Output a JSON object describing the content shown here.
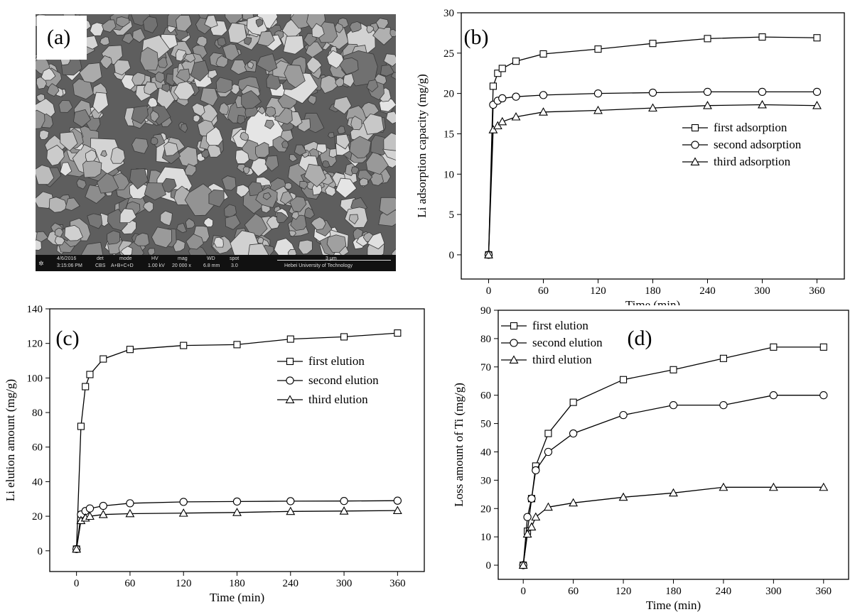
{
  "panel_a": {
    "label": "(a)",
    "sem_info": {
      "date": "4/6/2016",
      "time": "3:15:06 PM",
      "det_label": "det",
      "det_value": "CBS",
      "mode_label": "mode",
      "mode_value": "A+B+C+D",
      "hv_label": "HV",
      "hv_value": "1.00 kV",
      "mag_label": "mag",
      "mag_value": "20 000 x",
      "wd_label": "WD",
      "wd_value": "6.8 mm",
      "spot_label": "spot",
      "spot_value": "3.0",
      "scale_label": "3 μm",
      "institution": "Hebei University of Technology"
    }
  },
  "chart_data": [
    {
      "id": "b",
      "panel_label": "(b)",
      "type": "line",
      "xlabel": "Time (min)",
      "ylabel": "Li adsorption capacity (mg/g)",
      "xlim": [
        -30,
        390
      ],
      "ylim": [
        -3,
        30
      ],
      "xticks": [
        0,
        60,
        120,
        180,
        240,
        300,
        360
      ],
      "yticks": [
        0,
        5,
        10,
        15,
        20,
        25,
        30
      ],
      "legend_position": "center-right",
      "series": [
        {
          "name": "first adsorption",
          "marker": "square",
          "x": [
            0,
            5,
            10,
            15,
            30,
            60,
            120,
            180,
            240,
            300,
            360
          ],
          "y": [
            0,
            20.9,
            22.5,
            23.1,
            24.0,
            24.9,
            25.5,
            26.2,
            26.8,
            27.0,
            26.9
          ]
        },
        {
          "name": "second adsorption",
          "marker": "circle",
          "x": [
            0,
            5,
            10,
            15,
            30,
            60,
            120,
            180,
            240,
            300,
            360
          ],
          "y": [
            0,
            18.6,
            19.1,
            19.4,
            19.6,
            19.8,
            20.0,
            20.1,
            20.2,
            20.2,
            20.2
          ]
        },
        {
          "name": "third adsorption",
          "marker": "triangle",
          "x": [
            0,
            5,
            10,
            15,
            30,
            60,
            120,
            180,
            240,
            300,
            360
          ],
          "y": [
            0,
            15.5,
            16.0,
            16.5,
            17.1,
            17.7,
            17.9,
            18.2,
            18.5,
            18.6,
            18.5
          ]
        }
      ]
    },
    {
      "id": "c",
      "panel_label": "(c)",
      "type": "line",
      "xlabel": "Time (min)",
      "ylabel": "Li elution amount (mg/g)",
      "xlim": [
        -30,
        390
      ],
      "ylim": [
        -12,
        140
      ],
      "xticks": [
        0,
        60,
        120,
        180,
        240,
        300,
        360
      ],
      "yticks": [
        0,
        20,
        40,
        60,
        80,
        100,
        120,
        140
      ],
      "legend_position": "center-right",
      "series": [
        {
          "name": "first elution",
          "marker": "square",
          "x": [
            0,
            5,
            10,
            15,
            30,
            60,
            120,
            180,
            240,
            300,
            360
          ],
          "y": [
            1,
            72,
            95,
            102,
            111,
            116.5,
            118.8,
            119.3,
            122.5,
            123.8,
            126
          ]
        },
        {
          "name": "second elution",
          "marker": "circle",
          "x": [
            0,
            5,
            10,
            15,
            30,
            60,
            120,
            180,
            240,
            300,
            360
          ],
          "y": [
            1,
            21,
            23,
            24.5,
            26,
            27.5,
            28.3,
            28.5,
            28.7,
            28.8,
            29
          ]
        },
        {
          "name": "third elution",
          "marker": "triangle",
          "x": [
            0,
            5,
            10,
            15,
            30,
            60,
            120,
            180,
            240,
            300,
            360
          ],
          "y": [
            1,
            17.5,
            19,
            20,
            21,
            21.5,
            21.8,
            22.2,
            22.8,
            23,
            23.3
          ]
        }
      ]
    },
    {
      "id": "d",
      "panel_label": "(d)",
      "type": "line",
      "xlabel": "Time (min)",
      "ylabel": "Loss amount of Ti (mg/g)",
      "xlim": [
        -30,
        390
      ],
      "ylim": [
        -5,
        90
      ],
      "xticks": [
        0,
        60,
        120,
        180,
        240,
        300,
        360
      ],
      "yticks": [
        0,
        10,
        20,
        30,
        40,
        50,
        60,
        70,
        80,
        90
      ],
      "legend_position": "top-left",
      "series": [
        {
          "name": "first elution",
          "marker": "square",
          "x": [
            0,
            5,
            10,
            15,
            30,
            60,
            120,
            180,
            240,
            300,
            360
          ],
          "y": [
            0,
            12,
            23.5,
            35,
            46.5,
            57.5,
            65.5,
            69,
            73,
            77,
            77
          ]
        },
        {
          "name": "second elution",
          "marker": "circle",
          "x": [
            0,
            5,
            10,
            15,
            30,
            60,
            120,
            180,
            240,
            300,
            360
          ],
          "y": [
            0,
            17,
            23.5,
            33.5,
            40,
            46.5,
            53,
            56.5,
            56.5,
            60,
            60
          ]
        },
        {
          "name": "third elution",
          "marker": "triangle",
          "x": [
            0,
            5,
            10,
            15,
            30,
            60,
            120,
            180,
            240,
            300,
            360
          ],
          "y": [
            0,
            11,
            13.5,
            17,
            20.5,
            22,
            24,
            25.5,
            27.5,
            27.5,
            27.5
          ]
        }
      ]
    }
  ]
}
